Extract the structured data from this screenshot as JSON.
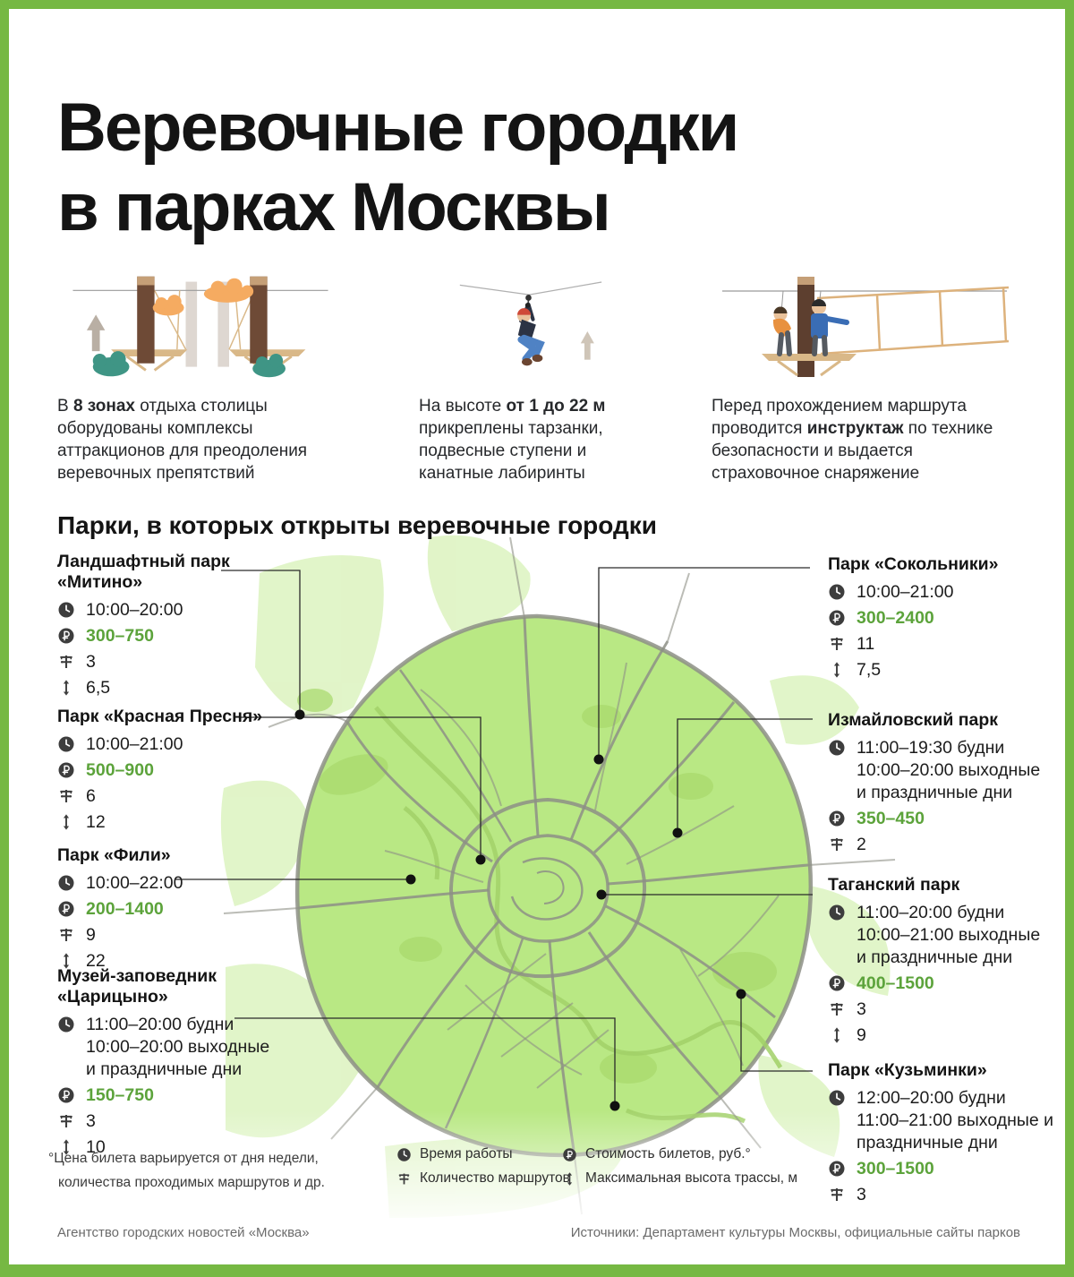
{
  "colors": {
    "frame_green": "#76b843",
    "accent_green": "#5ca33b",
    "map_green": "#b9e884",
    "road_gray": "#8d8f86",
    "marker_black": "#111111"
  },
  "header": {
    "title_line1": "Веревочные городки",
    "title_line2": "в парках Москвы"
  },
  "facts": [
    {
      "pre": "В ",
      "bold": "8 зонах",
      "post": " отдыха столицы оборудованы комплексы аттракционов для преодоления веревочных препятствий"
    },
    {
      "pre": "На высоте ",
      "bold": "от 1 до 22 м",
      "post": " прикреплены тарзанки, подвесные ступени и канатные лабиринты"
    },
    {
      "pre": "Перед прохождением маршрута проводится ",
      "bold": "инструктаж",
      "post": " по технике безопасности и выдается страховочное снаряжение"
    }
  ],
  "map_section": {
    "heading": "Парки, в которых открыты веревочные городки"
  },
  "parks": {
    "mitino": {
      "name": "Ландшафтный парк «Митино»",
      "hours": [
        "10:00–20:00"
      ],
      "price": "300–750",
      "routes": "3",
      "height": "6,5"
    },
    "presnya": {
      "name": "Парк «Красная Пресня»",
      "hours": [
        "10:00–21:00"
      ],
      "price": "500–900",
      "routes": "6",
      "height": "12"
    },
    "fili": {
      "name": "Парк «Фили»",
      "hours": [
        "10:00–22:00"
      ],
      "price": "200–1400",
      "routes": "9",
      "height": "22"
    },
    "tsaritsyno": {
      "name": "Музей-заповедник «Царицыно»",
      "hours": [
        "11:00–20:00 будни",
        "10:00–20:00 выходные",
        "и праздничные дни"
      ],
      "price": "150–750",
      "routes": "3",
      "height": "10"
    },
    "sokolniki": {
      "name": "Парк «Сокольники»",
      "hours": [
        "10:00–21:00"
      ],
      "price": "300–2400",
      "routes": "11",
      "height": "7,5"
    },
    "izmailovsky": {
      "name": "Измайловский парк",
      "hours": [
        "11:00–19:30 будни",
        "10:00–20:00 выходные",
        "и праздничные дни"
      ],
      "price": "350–450",
      "routes": "2"
    },
    "tagansky": {
      "name": "Таганский парк",
      "hours": [
        "11:00–20:00 будни",
        "10:00–21:00 выходные",
        "и праздничные дни"
      ],
      "price": "400–1500",
      "routes": "3",
      "height": "9"
    },
    "kuzminki": {
      "name": "Парк «Кузьминки»",
      "hours": [
        "12:00–20:00 будни",
        "11:00–21:00 выходные и",
        "праздничные дни"
      ],
      "price": "300–1500",
      "routes": "3"
    }
  },
  "legend": {
    "footnote_line1": "°Цена билета варьируется от дня недели,",
    "footnote_line2": "количества проходимых маршрутов и др.",
    "time_label": "Время работы",
    "routes_label": "Количество маршрутов",
    "price_label": "Стоимость билетов, руб.°",
    "height_label": "Максимальная высота трассы, м"
  },
  "footer": {
    "left": "Агентство городских новостей «Москва»",
    "right": "Источники: Департамент культуры Москвы, официальные сайты парков"
  }
}
